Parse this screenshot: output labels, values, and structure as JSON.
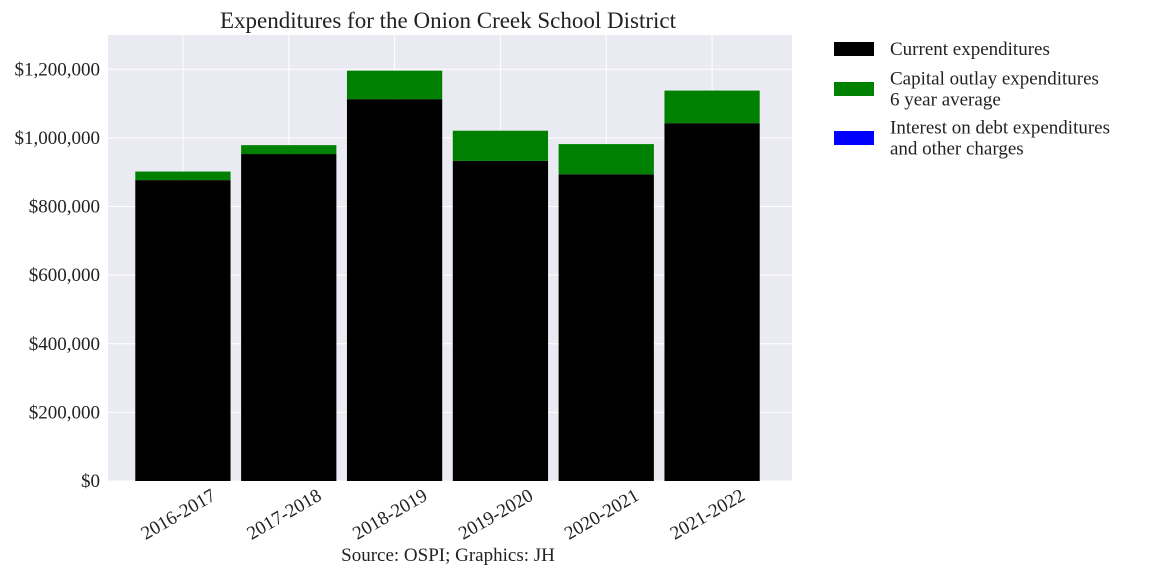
{
  "chart_data": {
    "type": "bar",
    "stacked": true,
    "title": "Expenditures for the Onion Creek School District",
    "xlabel": "Source: OSPI; Graphics: JH",
    "ylabel": "",
    "categories": [
      "2016-2017",
      "2017-2018",
      "2018-2019",
      "2019-2020",
      "2020-2021",
      "2021-2022"
    ],
    "ylim": [
      0,
      1300000
    ],
    "yticks": [
      0,
      200000,
      400000,
      600000,
      800000,
      1000000,
      1200000
    ],
    "ytick_labels": [
      "$0",
      "$200,000",
      "$400,000",
      "$600,000",
      "$800,000",
      "$1,000,000",
      "$1,200,000"
    ],
    "series": [
      {
        "name": "Current expenditures",
        "color": "#000000",
        "values": [
          877000,
          953000,
          1113000,
          933000,
          894000,
          1043000
        ]
      },
      {
        "name": "Capital outlay expenditures\n6 year average",
        "color": "#008000",
        "values": [
          25000,
          26000,
          83000,
          88000,
          88000,
          95000
        ]
      },
      {
        "name": "Interest on debt expenditures\nand other charges",
        "color": "#0000ff",
        "values": [
          0,
          0,
          0,
          0,
          0,
          0
        ]
      }
    ],
    "grid": true,
    "background": "#eaeaf2",
    "legend_position": "outside-right-top"
  }
}
